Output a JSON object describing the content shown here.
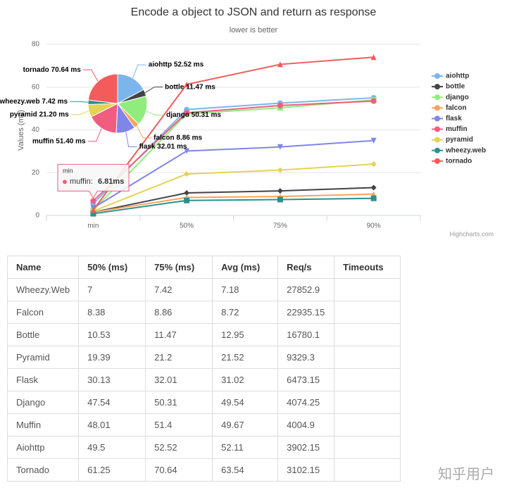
{
  "chart_data": [
    {
      "type": "line",
      "title": "Encode a object to JSON and return as response",
      "subtitle": "lower is better",
      "y_label": "Values (ms)",
      "categories": [
        "min",
        "50%",
        "75%",
        "90%"
      ],
      "ylim": [
        0,
        80
      ],
      "yticks": [
        0,
        20,
        40,
        60,
        80
      ],
      "grid": true,
      "legend": "right",
      "series": [
        {
          "name": "aiohttp",
          "color": "#7cb5ec",
          "marker": "circle",
          "values": [
            5.5,
            49.5,
            52.52,
            55
          ]
        },
        {
          "name": "bottle",
          "color": "#434348",
          "marker": "diamond",
          "values": [
            1.5,
            10.53,
            11.47,
            13
          ]
        },
        {
          "name": "django",
          "color": "#90ed7d",
          "marker": "square",
          "values": [
            2.5,
            47.54,
            50.31,
            54
          ]
        },
        {
          "name": "falcon",
          "color": "#f7a35c",
          "marker": "triangle",
          "values": [
            1.5,
            8.38,
            8.86,
            10
          ]
        },
        {
          "name": "flask",
          "color": "#8085e9",
          "marker": "triangle-down",
          "values": [
            3.5,
            30.13,
            32.01,
            35
          ]
        },
        {
          "name": "muffin",
          "color": "#f15c80",
          "marker": "circle",
          "values": [
            6.81,
            48.01,
            51.4,
            53.5
          ]
        },
        {
          "name": "pyramid",
          "color": "#e4d354",
          "marker": "diamond",
          "values": [
            2,
            19.39,
            21.2,
            24
          ]
        },
        {
          "name": "wheezy.web",
          "color": "#2b908f",
          "marker": "square",
          "values": [
            0.8,
            7,
            7.42,
            8
          ]
        },
        {
          "name": "tornado",
          "color": "#f45b5b",
          "marker": "triangle",
          "values": [
            2.5,
            61.25,
            70.64,
            74
          ]
        }
      ],
      "tooltip": {
        "header": "min",
        "name": "muffin:",
        "value": 6.81,
        "value_label": "6.81ms",
        "color": "#f15c80"
      },
      "credits": "Highcharts.com"
    },
    {
      "type": "pie",
      "labels": [
        "aiohttp",
        "bottle",
        "django",
        "falcon",
        "flask",
        "muffin",
        "pyramid",
        "wheezy.web",
        "tornado"
      ],
      "values": [
        52.52,
        11.47,
        50.31,
        8.86,
        32.01,
        51.4,
        21.2,
        7.42,
        70.64
      ],
      "value_labels": [
        "aiohttp 52.52 ms",
        "bottle 11.47 ms",
        "django 50.31 ms",
        "falcon 8.86 ms",
        "flask 32.01 ms",
        "muffin 51.40 ms",
        "pyramid 21.20 ms",
        "wheezy.web 7.42 ms",
        "tornado 70.64 ms"
      ],
      "colors": [
        "#7cb5ec",
        "#434348",
        "#90ed7d",
        "#f7a35c",
        "#8085e9",
        "#f15c80",
        "#e4d354",
        "#2b908f",
        "#f45b5b"
      ]
    }
  ],
  "table": {
    "columns": [
      "Name",
      "50% (ms)",
      "75% (ms)",
      "Avg (ms)",
      "Req/s",
      "Timeouts"
    ],
    "rows": [
      [
        "Wheezy.Web",
        7,
        7.42,
        7.18,
        27852.9
      ],
      [
        "Falcon",
        8.38,
        8.86,
        8.72,
        22935.15
      ],
      [
        "Bottle",
        10.53,
        11.47,
        12.95,
        16780.1
      ],
      [
        "Pyramid",
        19.39,
        21.2,
        21.52,
        9329.3
      ],
      [
        "Flask",
        30.13,
        32.01,
        31.02,
        6473.15
      ],
      [
        "Django",
        47.54,
        50.31,
        49.54,
        4074.25
      ],
      [
        "Muffin",
        48.01,
        51.4,
        49.67,
        4004.9
      ],
      [
        "Aiohttp",
        49.5,
        52.52,
        52.11,
        3902.15
      ],
      [
        "Tornado",
        61.25,
        70.64,
        63.54,
        3102.15
      ]
    ]
  },
  "watermark": "知乎用户"
}
